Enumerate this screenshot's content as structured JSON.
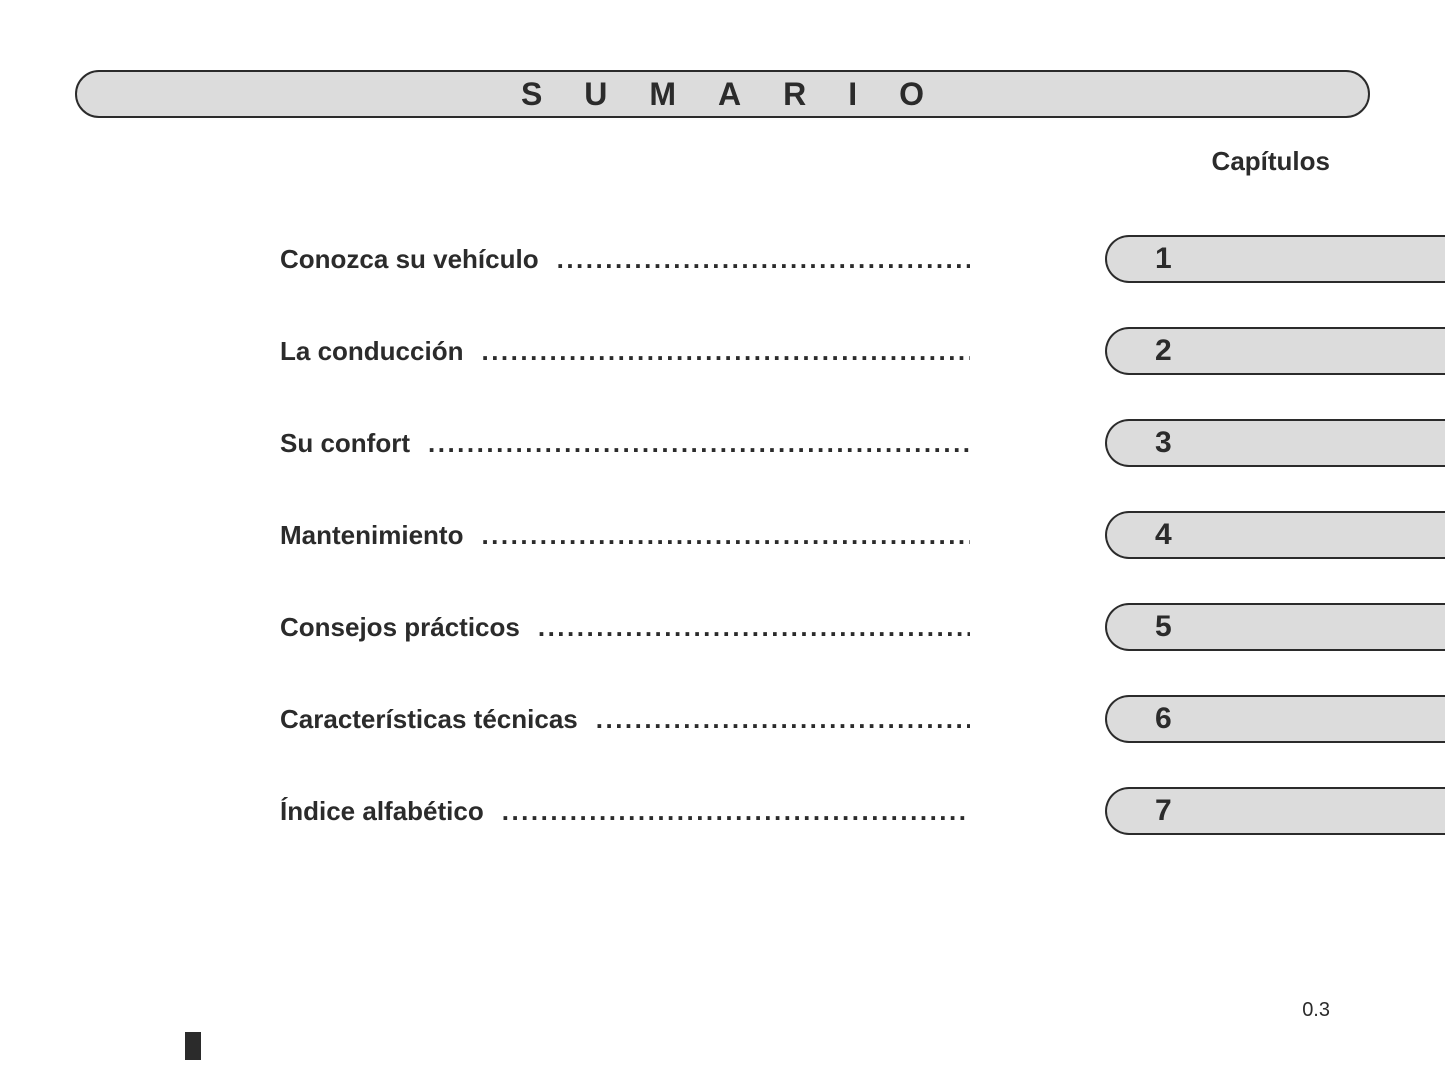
{
  "title": "SUMARIO",
  "subheader": "Capítulos",
  "page_number": "0.3",
  "colors": {
    "tab_bg": "#dcdcdc",
    "border": "#2b2b2b",
    "text": "#2b2b2b",
    "page_bg": "#ffffff"
  },
  "typography": {
    "title_fontsize": 32,
    "title_letterspacing": 42,
    "label_fontsize": 26,
    "chapter_num_fontsize": 30,
    "subheader_fontsize": 26,
    "page_num_fontsize": 20,
    "font_family": "Arial"
  },
  "toc": [
    {
      "label": "Conozca su vehículo",
      "chapter": "1"
    },
    {
      "label": "La conducción",
      "chapter": "2"
    },
    {
      "label": "Su confort",
      "chapter": "3"
    },
    {
      "label": "Mantenimiento",
      "chapter": "4"
    },
    {
      "label": "Consejos prácticos",
      "chapter": "5"
    },
    {
      "label": "Características técnicas",
      "chapter": "6"
    },
    {
      "label": "Índice alfabético",
      "chapter": "7"
    }
  ]
}
